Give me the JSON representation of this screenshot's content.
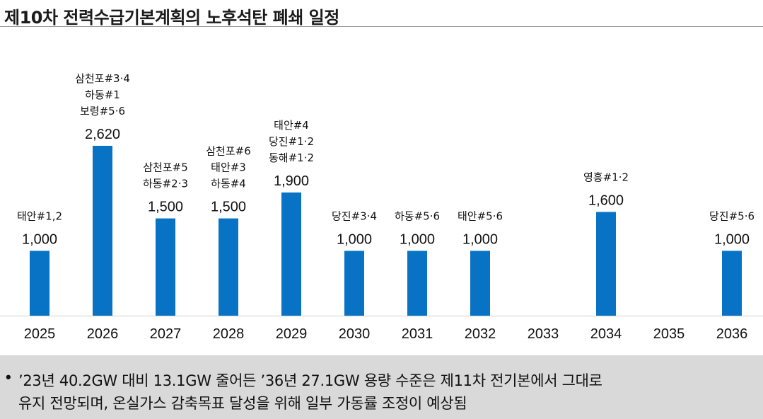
{
  "title": "제10차 전력수급기본계획의 노후석탄 폐쇄 일정",
  "chart_data": {
    "type": "bar",
    "categories": [
      "2025",
      "2026",
      "2027",
      "2028",
      "2029",
      "2030",
      "2031",
      "2032",
      "2033",
      "2034",
      "2035",
      "2036"
    ],
    "values": [
      1000,
      2620,
      1500,
      1500,
      1900,
      1000,
      1000,
      1000,
      null,
      1600,
      null,
      1000
    ],
    "value_labels": [
      "1,000",
      "2,620",
      "1,500",
      "1,500",
      "1,900",
      "1,000",
      "1,000",
      "1,000",
      "",
      "1,600",
      "",
      "1,000"
    ],
    "plant_labels": [
      [
        "태안#1,2"
      ],
      [
        "삼천포#3·4",
        "하동#1",
        "보령#5·6"
      ],
      [
        "삼천포#5",
        "하동#2·3"
      ],
      [
        "삼천포#6",
        "태안#3",
        "하동#4"
      ],
      [
        "태안#4",
        "당진#1·2",
        "동해#1·2"
      ],
      [
        "당진#3·4"
      ],
      [
        "하동#5·6"
      ],
      [
        "태안#5·6"
      ],
      [],
      [
        "영흥#1·2"
      ],
      [],
      [
        "당진#5·6"
      ]
    ],
    "title": "",
    "xlabel": "",
    "ylabel": "",
    "ylim": [
      0,
      2620
    ],
    "grid": false,
    "bar_color": "#0872c4"
  },
  "note": {
    "line1": "’23년 40.2GW 대비 13.1GW 줄어든 ’36년 27.1GW 용량 수준은 제11차 전기본에서 그대로",
    "line2": "유지 전망되며, 온실가스 감축목표 달성을 위해 일부 가동률 조정이 예상됨"
  }
}
